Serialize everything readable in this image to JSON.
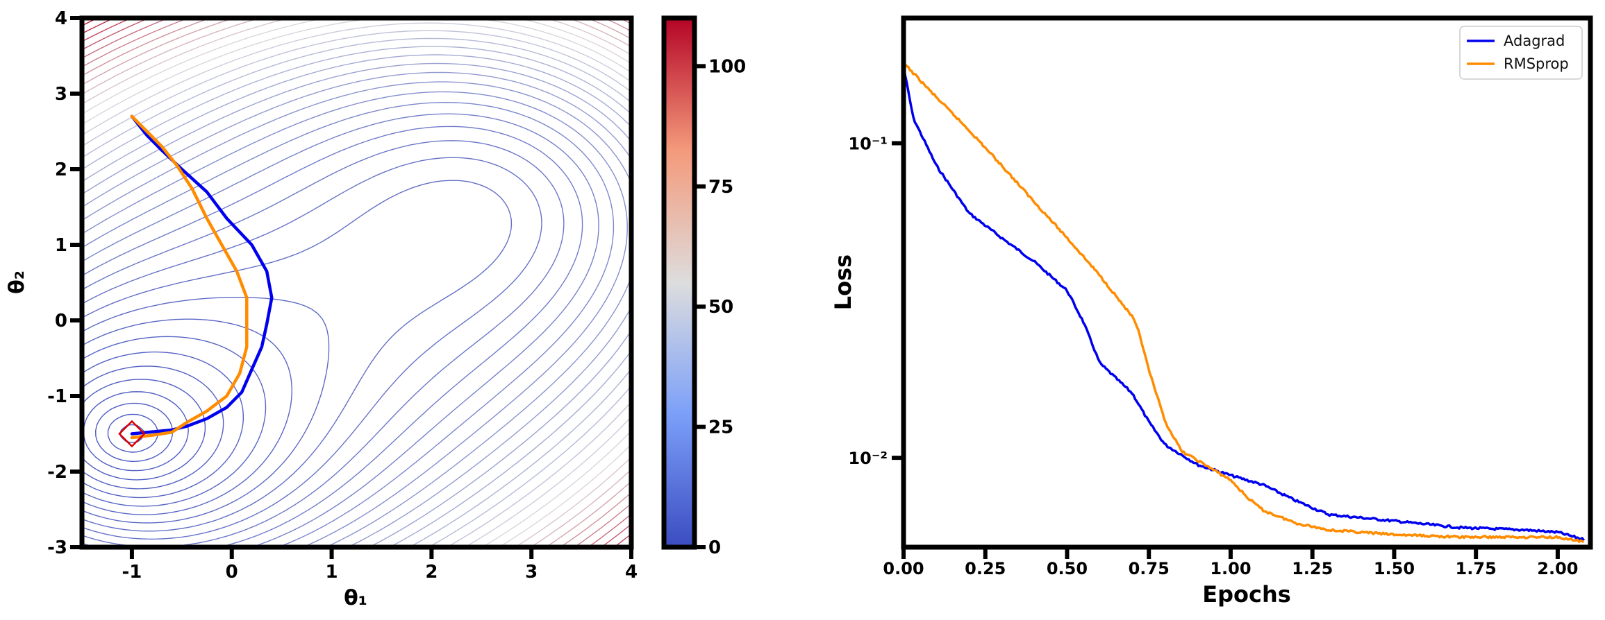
{
  "chart_data": [
    {
      "type": "contour",
      "xlabel": "θ₁",
      "ylabel": "θ₂",
      "xlim": [
        -1.5,
        4
      ],
      "ylim": [
        -3,
        4
      ],
      "x_ticks": [
        "-1",
        "0",
        "1",
        "2",
        "3",
        "4"
      ],
      "y_ticks": [
        "-3",
        "-2",
        "-1",
        "0",
        "1",
        "2",
        "3",
        "4"
      ],
      "colormap": "coolwarm",
      "colors": {
        "low": "#3b4cc0",
        "mid": "#dddddd",
        "high": "#b40426"
      },
      "colorbar_ticks": [
        "0",
        "25",
        "50",
        "75",
        "100"
      ],
      "minima": [
        [
          -1.0,
          -1.5
        ],
        [
          2.6,
          1.6
        ]
      ],
      "start_point": [
        -1.0,
        2.7
      ],
      "end_marker": [
        -1.0,
        -1.5
      ],
      "trajectories": [
        {
          "name": "Adagrad",
          "color": "#0000ee",
          "points": [
            [
              -1.0,
              2.7
            ],
            [
              -0.85,
              2.45
            ],
            [
              -0.7,
              2.25
            ],
            [
              -0.5,
              2.0
            ],
            [
              -0.25,
              1.7
            ],
            [
              -0.05,
              1.35
            ],
            [
              0.2,
              1.0
            ],
            [
              0.35,
              0.65
            ],
            [
              0.4,
              0.3
            ],
            [
              0.35,
              -0.05
            ],
            [
              0.3,
              -0.35
            ],
            [
              0.2,
              -0.65
            ],
            [
              0.1,
              -0.95
            ],
            [
              -0.05,
              -1.15
            ],
            [
              -0.25,
              -1.3
            ],
            [
              -0.45,
              -1.4
            ],
            [
              -0.6,
              -1.45
            ],
            [
              -1.0,
              -1.5
            ]
          ]
        },
        {
          "name": "RMSprop",
          "color": "#ff8c00",
          "points": [
            [
              -1.0,
              2.7
            ],
            [
              -0.85,
              2.5
            ],
            [
              -0.7,
              2.3
            ],
            [
              -0.55,
              2.05
            ],
            [
              -0.4,
              1.75
            ],
            [
              -0.25,
              1.35
            ],
            [
              -0.1,
              1.0
            ],
            [
              0.05,
              0.65
            ],
            [
              0.15,
              0.3
            ],
            [
              0.15,
              0.0
            ],
            [
              0.15,
              -0.35
            ],
            [
              0.08,
              -0.7
            ],
            [
              -0.05,
              -1.0
            ],
            [
              -0.25,
              -1.2
            ],
            [
              -0.45,
              -1.35
            ],
            [
              -0.6,
              -1.48
            ],
            [
              -0.8,
              -1.52
            ],
            [
              -1.0,
              -1.55
            ]
          ]
        }
      ]
    },
    {
      "type": "line",
      "xlabel": "Epochs",
      "ylabel": "Loss",
      "yscale": "log",
      "x_ticks": [
        "0.00",
        "0.25",
        "0.50",
        "0.75",
        "1.00",
        "1.25",
        "1.50",
        "1.75",
        "2.00"
      ],
      "y_ticks": [
        "10⁻¹",
        "10⁻²"
      ],
      "xlim": [
        0,
        2.1
      ],
      "legend": "top-right",
      "series": [
        {
          "name": "Adagrad",
          "color": "#0000ee",
          "x": [
            0.0,
            0.03,
            0.1,
            0.2,
            0.3,
            0.4,
            0.5,
            0.55,
            0.6,
            0.7,
            0.75,
            0.8,
            0.9,
            1.0,
            1.1,
            1.2,
            1.3,
            1.5,
            1.7,
            1.9,
            2.0,
            2.08
          ],
          "y": [
            0.175,
            0.12,
            0.085,
            0.06,
            0.05,
            0.042,
            0.034,
            0.027,
            0.02,
            0.016,
            0.013,
            0.011,
            0.0095,
            0.0088,
            0.0082,
            0.0073,
            0.0066,
            0.0063,
            0.006,
            0.0059,
            0.0058,
            0.0055
          ]
        },
        {
          "name": "RMSprop",
          "color": "#ff8c00",
          "x": [
            0.0,
            0.1,
            0.2,
            0.3,
            0.4,
            0.5,
            0.6,
            0.7,
            0.72,
            0.75,
            0.8,
            0.85,
            0.9,
            1.0,
            1.05,
            1.1,
            1.2,
            1.3,
            1.5,
            1.7,
            1.9,
            2.0,
            2.08
          ],
          "y": [
            0.18,
            0.14,
            0.11,
            0.085,
            0.065,
            0.05,
            0.038,
            0.028,
            0.025,
            0.019,
            0.013,
            0.0105,
            0.0098,
            0.0085,
            0.0075,
            0.0068,
            0.0062,
            0.0059,
            0.0057,
            0.0056,
            0.0056,
            0.0056,
            0.0054
          ]
        }
      ]
    }
  ]
}
